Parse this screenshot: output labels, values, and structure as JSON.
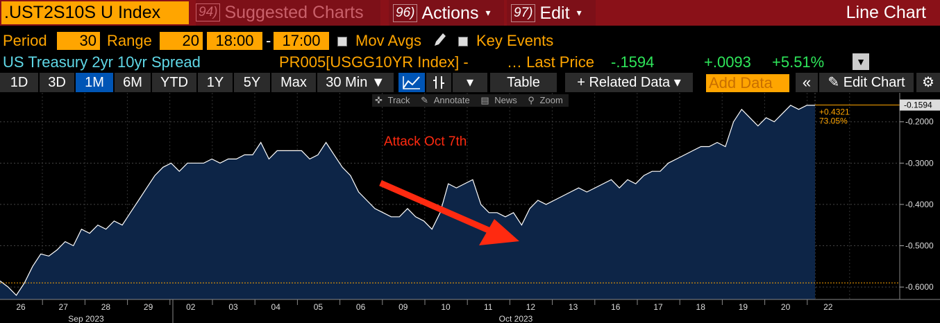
{
  "header": {
    "ticker": ".UST2S10S U Index",
    "suggested": {
      "num": "94)",
      "label": "Suggested Charts"
    },
    "actions": {
      "num": "96)",
      "label": "Actions"
    },
    "edit": {
      "num": "97)",
      "label": "Edit"
    },
    "chart_type": "Line Chart"
  },
  "controls": {
    "period_label": "Period",
    "period_value": "30",
    "range_label": "Range",
    "range_value": "20",
    "time_start": "18:00",
    "dash": "-",
    "time_end": "17:00",
    "mov_avgs": "Mov Avgs",
    "key_events": "Key Events"
  },
  "info": {
    "security_name": "US Treasury 2yr 10yr Spread",
    "source": "PR005[USGG10YR Index] -",
    "last_price_label": "… Last Price",
    "last_price": "-.1594",
    "change": "+.0093",
    "change_pct": "+5.51%"
  },
  "toolbar": {
    "periods": [
      "1D",
      "3D",
      "1M",
      "6M",
      "YTD",
      "1Y",
      "5Y",
      "Max"
    ],
    "selected_period": "1M",
    "interval": "30 Min ▼",
    "table": "Table",
    "related": "+ Related Data ▾",
    "add_data_placeholder": "Add Data",
    "edit_chart": "Edit Chart"
  },
  "chart_tools": [
    "Track",
    "Annotate",
    "News",
    "Zoom"
  ],
  "chart_data": {
    "type": "area",
    "title": "",
    "ylabel": "",
    "ylim": [
      -0.63,
      -0.13
    ],
    "y_ticks": [
      "-0.2000",
      "-0.3000",
      "-0.4000",
      "-0.5000",
      "-0.6000"
    ],
    "x_ticks": [
      "26",
      "27",
      "28",
      "29",
      "02",
      "03",
      "04",
      "05",
      "06",
      "09",
      "10",
      "11",
      "12",
      "13",
      "16",
      "17",
      "18",
      "19",
      "20",
      "22"
    ],
    "month_labels": [
      "Sep 2023",
      "Oct 2023"
    ],
    "series": [
      {
        "values": [
          -0.585,
          -0.6,
          -0.62,
          -0.59,
          -0.55,
          -0.52,
          -0.525,
          -0.51,
          -0.49,
          -0.5,
          -0.46,
          -0.47,
          -0.45,
          -0.46,
          -0.44,
          -0.45,
          -0.42,
          -0.39,
          -0.36,
          -0.33,
          -0.31,
          -0.3,
          -0.32,
          -0.3,
          -0.3,
          -0.3,
          -0.29,
          -0.3,
          -0.29,
          -0.29,
          -0.28,
          -0.28,
          -0.25,
          -0.29,
          -0.27,
          -0.27,
          -0.27,
          -0.27,
          -0.29,
          -0.28,
          -0.25,
          -0.28,
          -0.31,
          -0.33,
          -0.37,
          -0.39,
          -0.41,
          -0.42,
          -0.43,
          -0.43,
          -0.41,
          -0.43,
          -0.44,
          -0.46,
          -0.42,
          -0.35,
          -0.36,
          -0.35,
          -0.34,
          -0.4,
          -0.42,
          -0.42,
          -0.43,
          -0.42,
          -0.45,
          -0.41,
          -0.39,
          -0.4,
          -0.39,
          -0.38,
          -0.37,
          -0.36,
          -0.37,
          -0.36,
          -0.35,
          -0.34,
          -0.36,
          -0.34,
          -0.35,
          -0.33,
          -0.32,
          -0.32,
          -0.3,
          -0.29,
          -0.28,
          -0.27,
          -0.26,
          -0.26,
          -0.25,
          -0.26,
          -0.2,
          -0.17,
          -0.19,
          -0.21,
          -0.19,
          -0.2,
          -0.18,
          -0.16,
          -0.17,
          -0.16,
          -0.16
        ]
      }
    ],
    "reference_line": -0.59,
    "last_value": -0.1594,
    "last_label": "-0.1594",
    "badge_change": "+0.4321",
    "badge_pct": "73.05%",
    "annotation": "Attack Oct 7th",
    "colors": {
      "area": "#0d2547",
      "line": "#ffffff",
      "annotation": "#ff2a10",
      "badge": "#ffa500",
      "reference": "#ffa500"
    }
  }
}
